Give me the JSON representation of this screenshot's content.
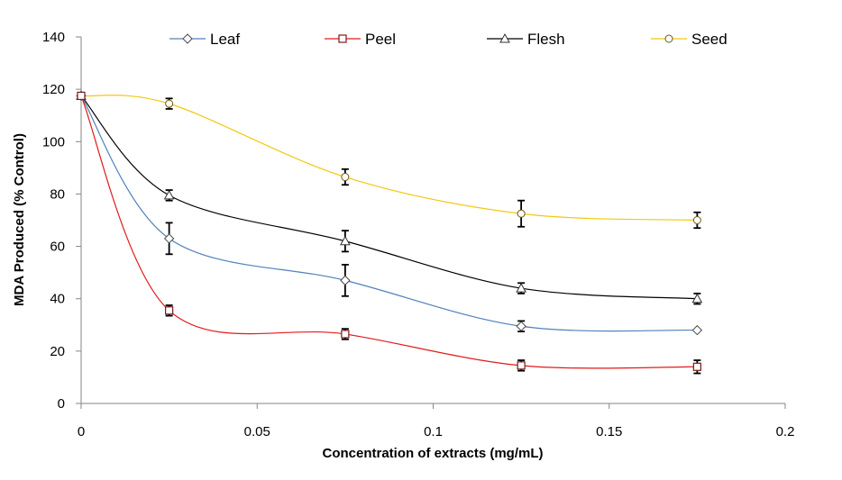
{
  "chart_data": {
    "type": "line",
    "title": "",
    "xlabel": "Concentration of extracts (mg/mL)",
    "ylabel": "MDA Produced (% Control)",
    "xlim": [
      0,
      0.2
    ],
    "ylim": [
      0,
      140
    ],
    "xticks": [
      0,
      0.05,
      0.1,
      0.15,
      0.2
    ],
    "xtick_labels": [
      "0",
      "0.05",
      "0.1",
      "0.15",
      "0.2"
    ],
    "yticks": [
      0,
      20,
      40,
      60,
      80,
      100,
      120,
      140
    ],
    "ytick_labels": [
      "0",
      "20",
      "40",
      "60",
      "80",
      "100",
      "120",
      "140"
    ],
    "grid": false,
    "legend_position": "top",
    "x": [
      0,
      0.025,
      0.075,
      0.125,
      0.175
    ],
    "series": [
      {
        "name": "Leaf",
        "color": "#4F81BD",
        "marker": "diamond",
        "values": [
          117.5,
          63,
          47,
          29.5,
          28
        ],
        "errors": [
          0,
          6,
          6,
          2,
          0
        ]
      },
      {
        "name": "Peel",
        "color": "#E31A1C",
        "marker": "square",
        "values": [
          117.5,
          35.5,
          26.5,
          14.5,
          14
        ],
        "errors": [
          0,
          2,
          2,
          2,
          2.5
        ]
      },
      {
        "name": "Flesh",
        "color": "#000000",
        "marker": "triangle",
        "values": [
          117.5,
          79.5,
          62,
          44,
          40
        ],
        "errors": [
          0,
          2,
          4,
          2,
          2
        ]
      },
      {
        "name": "Seed",
        "color": "#F2C811",
        "marker": "circle",
        "values": [
          117.5,
          114.5,
          86.5,
          72.5,
          70
        ],
        "errors": [
          0,
          2,
          3,
          5,
          3
        ]
      }
    ]
  }
}
